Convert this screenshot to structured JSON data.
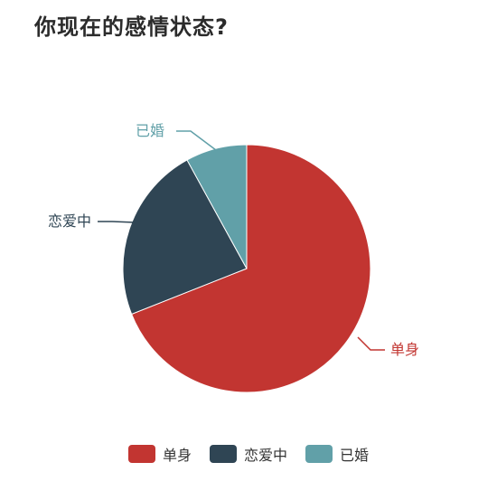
{
  "title": "你现在的感情状态?",
  "chart_data": {
    "type": "pie",
    "title": "你现在的感情状态?",
    "slices": [
      {
        "label": "单身",
        "value": 69,
        "color": "#c23531"
      },
      {
        "label": "恋爱中",
        "value": 23,
        "color": "#2f4554"
      },
      {
        "label": "已婚",
        "value": 8,
        "color": "#61a0a8"
      }
    ],
    "legend": "bottom",
    "start_angle": "top",
    "direction": "clockwise"
  }
}
